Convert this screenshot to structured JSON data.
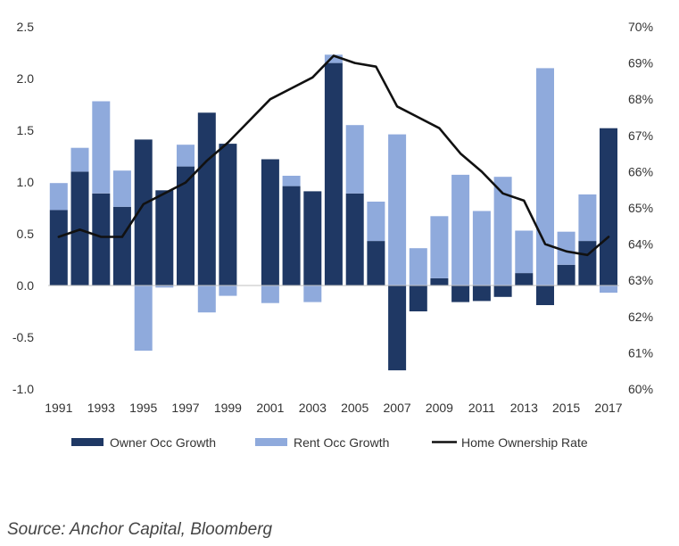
{
  "chart_data": {
    "type": "bar",
    "stacked": true,
    "years": [
      1991,
      1992,
      1993,
      1994,
      1995,
      1996,
      1997,
      1998,
      1999,
      2000,
      2001,
      2002,
      2003,
      2004,
      2005,
      2006,
      2007,
      2008,
      2009,
      2010,
      2011,
      2012,
      2013,
      2014,
      2015,
      2016,
      2017
    ],
    "x_tick_labels": [
      "1991",
      "1993",
      "1995",
      "1997",
      "1999",
      "2001",
      "2003",
      "2005",
      "2007",
      "2009",
      "2011",
      "2013",
      "2015",
      "2017"
    ],
    "series": [
      {
        "name": "Owner Occ Growth",
        "color": "#1f3864",
        "values": [
          0.73,
          1.1,
          0.89,
          0.76,
          1.41,
          0.92,
          1.15,
          1.67,
          1.37,
          null,
          1.22,
          0.96,
          0.91,
          2.15,
          0.89,
          0.43,
          -0.82,
          -0.25,
          0.07,
          -0.16,
          -0.15,
          -0.11,
          0.12,
          -0.19,
          0.2,
          0.43,
          1.52
        ]
      },
      {
        "name": "Rent Occ Growth",
        "color": "#8faadc",
        "values": [
          0.26,
          0.23,
          0.89,
          0.35,
          -0.63,
          -0.02,
          0.21,
          -0.26,
          -0.1,
          null,
          -0.17,
          0.1,
          -0.16,
          0.08,
          0.66,
          0.38,
          1.46,
          0.36,
          0.6,
          1.07,
          0.72,
          1.05,
          0.41,
          2.1,
          0.32,
          0.45,
          -0.07
        ]
      }
    ],
    "line": {
      "name": "Home Ownership Rate",
      "color": "#111111",
      "values": [
        64.2,
        64.4,
        64.2,
        64.2,
        65.1,
        65.4,
        65.7,
        66.3,
        66.8,
        67.4,
        68.0,
        68.3,
        68.6,
        69.2,
        69.0,
        68.9,
        67.8,
        67.5,
        67.2,
        66.5,
        66.0,
        65.4,
        65.2,
        64.0,
        63.8,
        63.7,
        64.2
      ]
    },
    "left_axis": {
      "min": -1.0,
      "max": 2.5,
      "ticks": [
        "-1.0",
        "-0.5",
        "0.0",
        "0.5",
        "1.0",
        "1.5",
        "2.0",
        "2.5"
      ]
    },
    "right_axis": {
      "min": 60,
      "max": 70,
      "ticks": [
        "60%",
        "61%",
        "62%",
        "63%",
        "64%",
        "65%",
        "66%",
        "67%",
        "68%",
        "69%",
        "70%"
      ]
    },
    "legend_position": "bottom",
    "grid": false
  },
  "legend": [
    {
      "label": "Owner Occ Growth",
      "kind": "swatch",
      "color": "#1f3864"
    },
    {
      "label": "Rent Occ Growth",
      "kind": "swatch",
      "color": "#8faadc"
    },
    {
      "label": "Home Ownership Rate",
      "kind": "line",
      "color": "#111111"
    }
  ],
  "source": "Source: Anchor Capital, Bloomberg"
}
